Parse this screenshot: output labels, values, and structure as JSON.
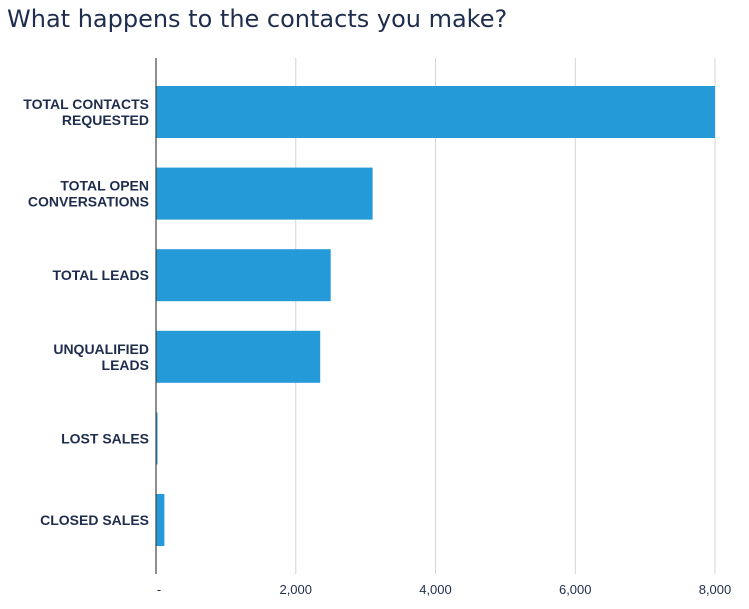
{
  "chart_data": {
    "type": "bar",
    "orientation": "horizontal",
    "title": "What happens to the contacts you make?",
    "categories": [
      [
        "TOTAL CONTACTS",
        "REQUESTED"
      ],
      [
        "TOTAL OPEN",
        "CONVERSATIONS"
      ],
      [
        "TOTAL LEADS"
      ],
      [
        "UNQUALIFIED",
        "LEADS"
      ],
      [
        "LOST SALES"
      ],
      [
        "CLOSED SALES"
      ]
    ],
    "values": [
      8000,
      3100,
      2500,
      2350,
      10,
      120
    ],
    "xlim": [
      0,
      8000
    ],
    "xticks": [
      0,
      2000,
      4000,
      6000,
      8000
    ],
    "xtick_labels": [
      "-",
      "2,000",
      "4,000",
      "6,000",
      "8,000"
    ],
    "xlabel": "",
    "ylabel": "",
    "grid": "vertical",
    "legend": "none",
    "bar_color": "#249ad8",
    "grid_color": "#d4d4d4",
    "axis_color": "#444444",
    "text_color": "#1f2d4d"
  }
}
